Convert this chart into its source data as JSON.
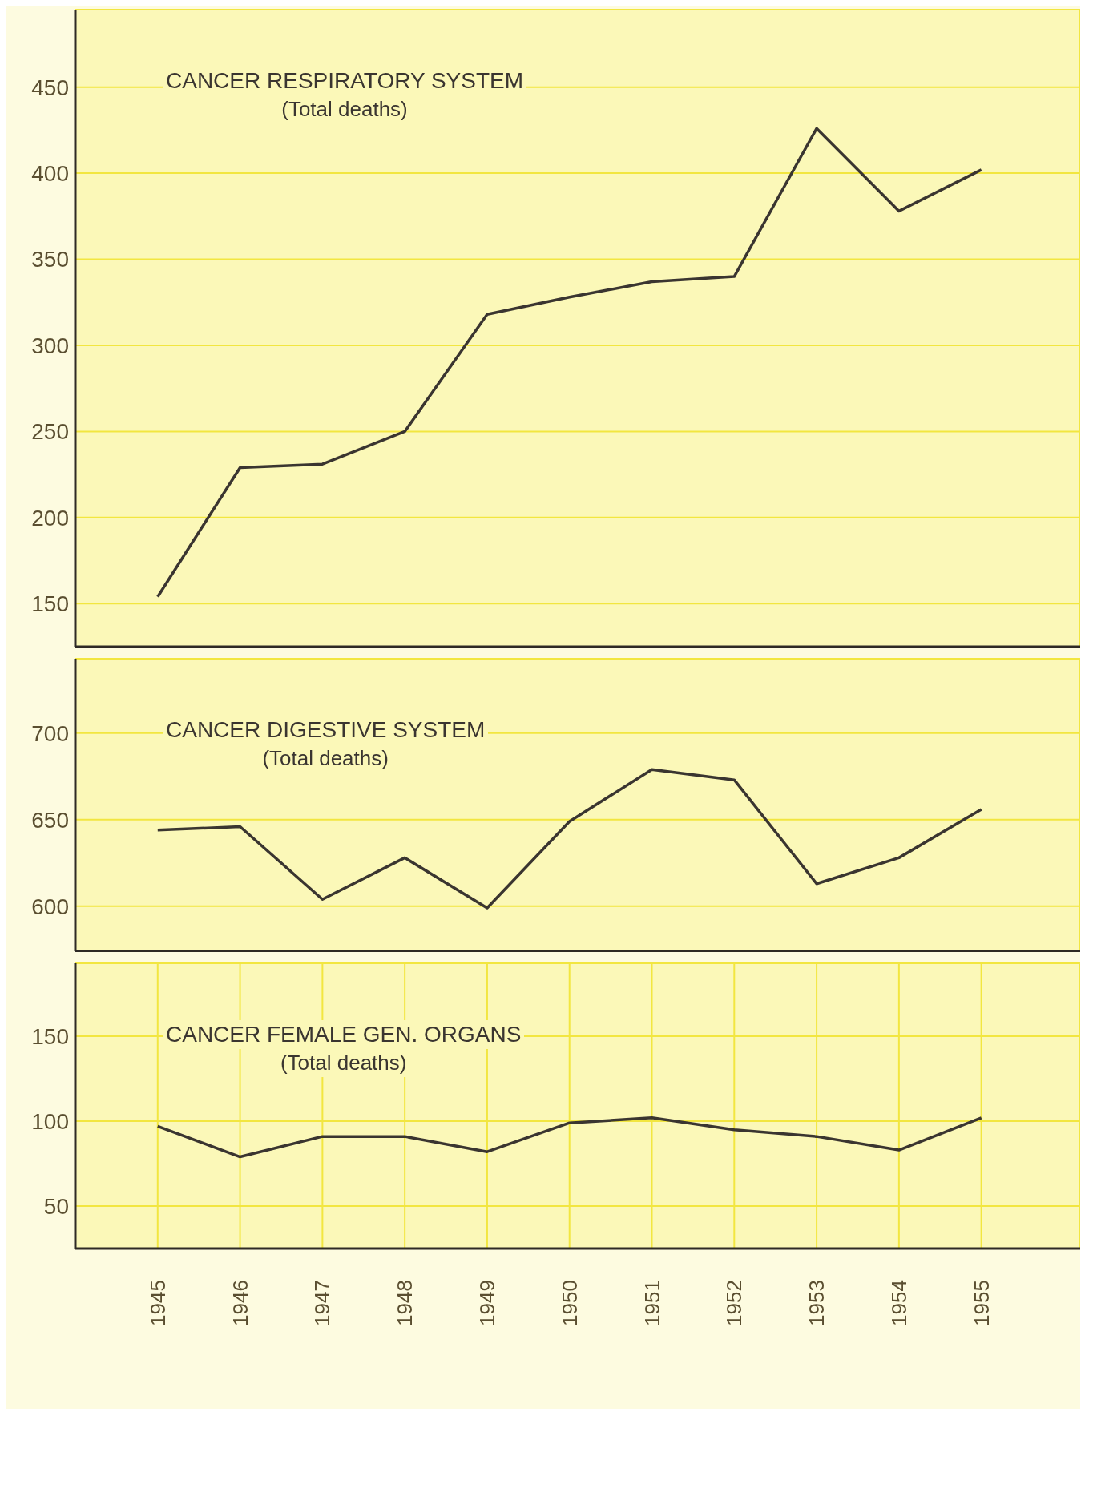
{
  "chart_data": [
    {
      "type": "line",
      "title": "CANCER RESPIRATORY SYSTEM",
      "subtitle": "(Total deaths)",
      "x": [
        1945,
        1946,
        1947,
        1948,
        1949,
        1950,
        1951,
        1952,
        1953,
        1954,
        1955
      ],
      "series": [
        {
          "color": "#3a3530",
          "values": [
            154,
            229,
            231,
            250,
            318,
            328,
            337,
            340,
            426,
            378,
            402
          ]
        }
      ],
      "xlim": [
        1944,
        1956.2
      ],
      "xticks": [
        1945,
        1946,
        1947,
        1948,
        1949,
        1950,
        1951,
        1952,
        1953,
        1954,
        1955
      ],
      "ylim": [
        125,
        495
      ],
      "yticks": [
        150,
        200,
        250,
        300,
        350,
        400,
        450
      ],
      "grid": true,
      "tick_labels": "y",
      "marker": "none",
      "line_style": "solid"
    },
    {
      "type": "line",
      "title": "CANCER DIGESTIVE SYSTEM",
      "subtitle": "(Total deaths)",
      "x": [
        1945,
        1946,
        1947,
        1948,
        1949,
        1950,
        1951,
        1952,
        1953,
        1954,
        1955
      ],
      "series": [
        {
          "color": "#3a3530",
          "values": [
            644,
            646,
            604,
            628,
            599,
            649,
            679,
            673,
            613,
            628,
            656
          ]
        }
      ],
      "xlim": [
        1944,
        1956.2
      ],
      "xticks": [
        1945,
        1946,
        1947,
        1948,
        1949,
        1950,
        1951,
        1952,
        1953,
        1954,
        1955
      ],
      "ylim": [
        574,
        743
      ],
      "yticks": [
        600,
        650,
        700
      ],
      "grid": true,
      "tick_labels": "y",
      "marker": "none",
      "line_style": "solid"
    },
    {
      "type": "line",
      "title": "CANCER FEMALE GEN. ORGANS",
      "subtitle": "(Total deaths)",
      "x": [
        1945,
        1946,
        1947,
        1948,
        1949,
        1950,
        1951,
        1952,
        1953,
        1954,
        1955
      ],
      "series": [
        {
          "color": "#3a3530",
          "values": [
            97,
            79,
            91,
            91,
            82,
            99,
            102,
            95,
            91,
            83,
            102
          ]
        }
      ],
      "xlim": [
        1944,
        1956.2
      ],
      "xticks": [
        1945,
        1946,
        1947,
        1948,
        1949,
        1950,
        1951,
        1952,
        1953,
        1954,
        1955
      ],
      "ylim": [
        25,
        193
      ],
      "yticks": [
        50,
        100,
        150
      ],
      "grid": true,
      "marker": "none",
      "line_style": "solid"
    }
  ]
}
